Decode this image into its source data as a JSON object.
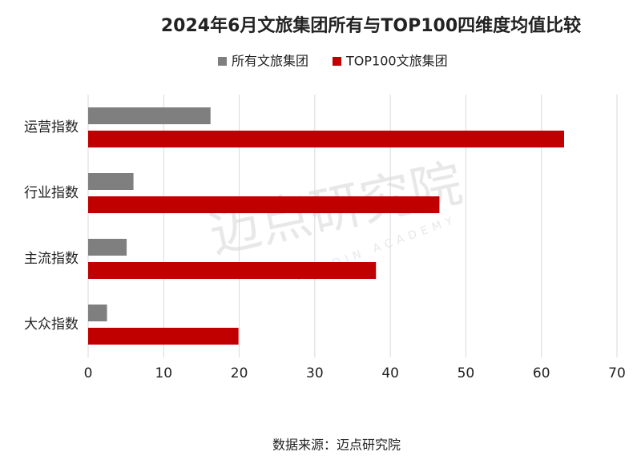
{
  "chart_data": {
    "type": "hbar",
    "title": "2024年6月文旅集团所有与TOP100四维度均值比较",
    "categories": [
      "运营指数",
      "行业指数",
      "主流指数",
      "大众指数"
    ],
    "series": [
      {
        "name": "所有文旅集团",
        "color": "#7f7f7f",
        "values": [
          16.2,
          6.0,
          5.1,
          2.5
        ]
      },
      {
        "name": "TOP100文旅集团",
        "color": "#c00000",
        "values": [
          63.0,
          46.5,
          38.1,
          19.9
        ]
      }
    ],
    "xlim": [
      0,
      70
    ],
    "xticks": [
      0,
      10,
      20,
      30,
      40,
      50,
      60,
      70
    ],
    "grid": true,
    "legend": "top",
    "source": "数据来源：迈点研究院",
    "watermark": "迈点研究院",
    "watermark_sub": "MEADIN ACADEMY"
  }
}
